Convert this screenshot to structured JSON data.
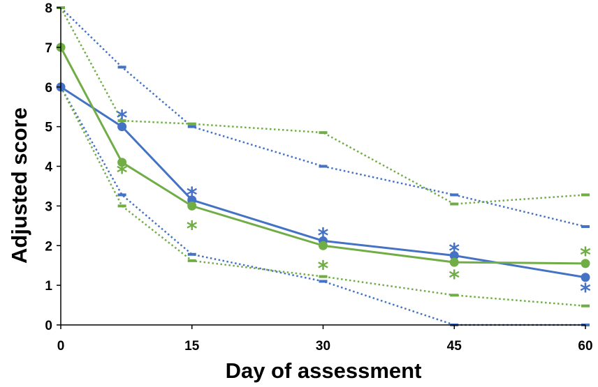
{
  "chart_data": {
    "type": "line",
    "title": "",
    "xlabel": "Day of assessment",
    "ylabel": "Adjusted score",
    "xlim": [
      0,
      60
    ],
    "ylim": [
      0,
      8
    ],
    "x_ticks": [
      0,
      15,
      30,
      45,
      60
    ],
    "y_ticks": [
      0,
      1,
      2,
      3,
      4,
      5,
      6,
      7,
      8
    ],
    "grid": false,
    "legend": "none",
    "x": [
      0,
      7,
      15,
      30,
      45,
      60
    ],
    "series": [
      {
        "name": "blue-median",
        "color": "#4472c4",
        "style": "solid",
        "marker": "circle",
        "values": [
          6,
          5,
          3.15,
          2.12,
          1.75,
          1.2
        ],
        "significance": [
          null,
          "*",
          "*",
          "*",
          "*",
          "*"
        ]
      },
      {
        "name": "green-median",
        "color": "#70ad47",
        "style": "solid",
        "marker": "circle",
        "values": [
          7,
          4.1,
          3,
          2,
          1.58,
          1.55
        ],
        "significance": [
          null,
          "*",
          "*",
          "*",
          "*",
          "*"
        ]
      },
      {
        "name": "blue-upper",
        "color": "#4472c4",
        "style": "dotted",
        "marker": "dash",
        "values": [
          8,
          6.5,
          5,
          4,
          3.28,
          2.48
        ]
      },
      {
        "name": "blue-lower",
        "color": "#4472c4",
        "style": "dotted",
        "marker": "dash",
        "values": [
          6,
          3.28,
          1.78,
          1.1,
          0,
          0
        ]
      },
      {
        "name": "green-upper",
        "color": "#70ad47",
        "style": "dotted",
        "marker": "dash",
        "values": [
          8,
          5.15,
          5.07,
          4.85,
          3.05,
          3.28
        ]
      },
      {
        "name": "green-lower",
        "color": "#70ad47",
        "style": "dotted",
        "marker": "dash",
        "values": [
          6,
          3,
          1.62,
          1.22,
          0.75,
          0.48
        ]
      }
    ]
  }
}
